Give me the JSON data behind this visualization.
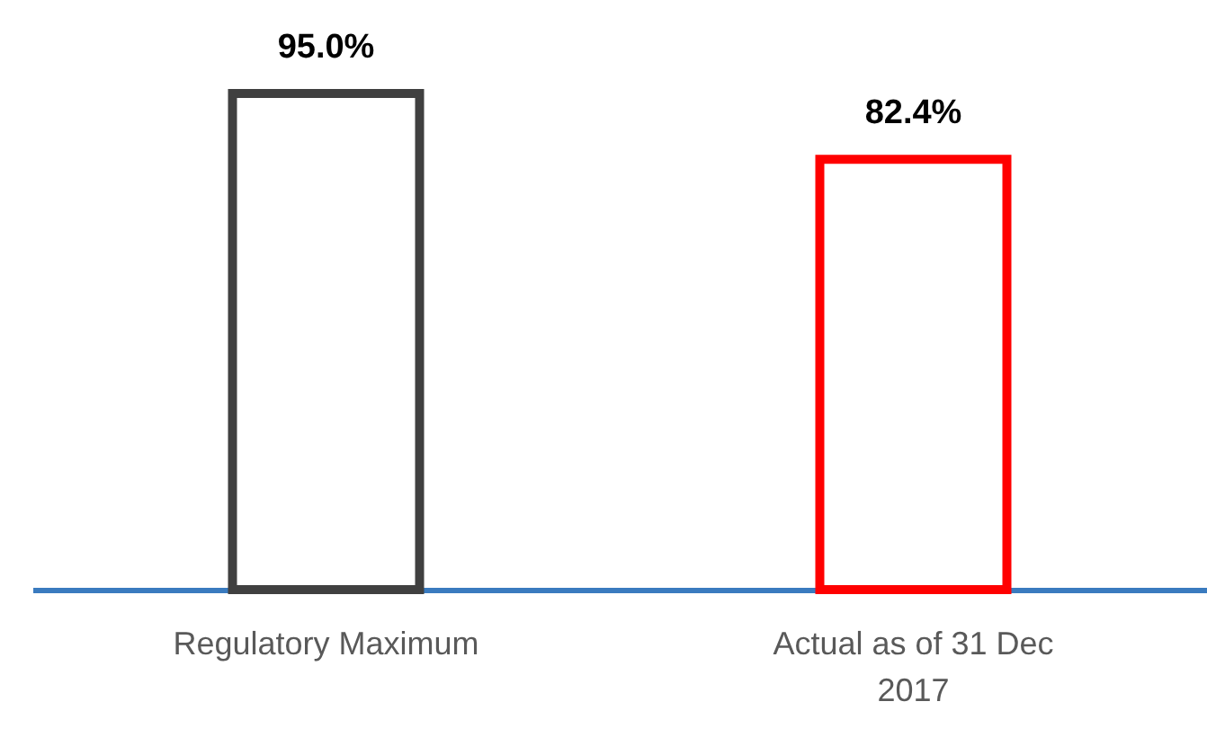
{
  "chart_data": {
    "type": "bar",
    "categories": [
      "Regulatory Maximum",
      "Actual as of 31 Dec 2017"
    ],
    "values": [
      95.0,
      82.4
    ],
    "colors": [
      "#404040",
      "#ff0000"
    ],
    "value_labels": [
      "95.0%",
      "82.4%"
    ]
  }
}
